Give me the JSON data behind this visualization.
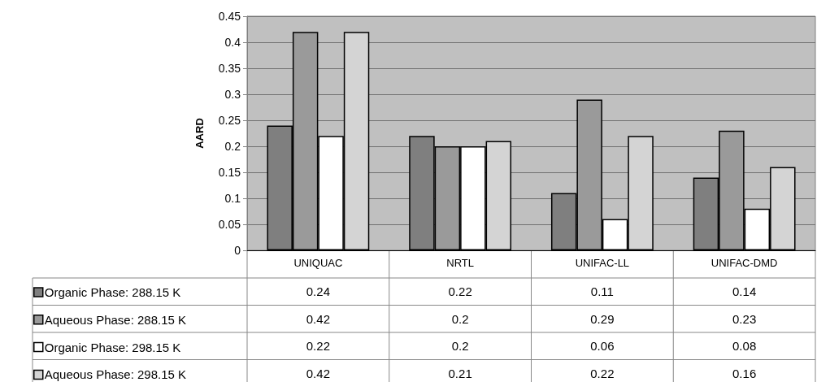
{
  "chart_data": {
    "type": "bar",
    "ylabel": "AARD",
    "categories": [
      "UNIQUAC",
      "NRTL",
      "UNIFAC-LL",
      "UNIFAC-DMD"
    ],
    "series": [
      {
        "name": "Organic Phase: 288.15 K",
        "color": "#7f7f7f",
        "values": [
          0.24,
          0.22,
          0.11,
          0.14
        ]
      },
      {
        "name": "Aqueous Phase: 288.15 K",
        "color": "#9a9a9a",
        "values": [
          0.42,
          0.2,
          0.29,
          0.23
        ]
      },
      {
        "name": "Organic Phase: 298.15 K",
        "color": "#ffffff",
        "values": [
          0.22,
          0.2,
          0.06,
          0.08
        ]
      },
      {
        "name": "Aqueous Phase: 298.15 K",
        "color": "#d4d4d4",
        "values": [
          0.42,
          0.21,
          0.22,
          0.16
        ]
      }
    ],
    "ylim": [
      0,
      0.45
    ],
    "yticks": [
      0,
      0.05,
      0.1,
      0.15,
      0.2,
      0.25,
      0.3,
      0.35,
      0.4,
      0.45
    ],
    "grid": "y",
    "legend": "bottom left",
    "data_labels": true
  }
}
